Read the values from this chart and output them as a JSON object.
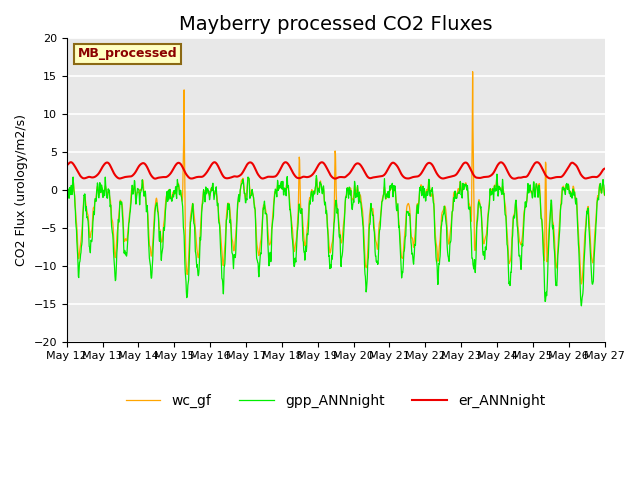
{
  "title": "Mayberry processed CO2 Fluxes",
  "ylabel": "CO2 Flux (urology/m2/s)",
  "xlabel": "",
  "ylim": [
    -20,
    20
  ],
  "background_color": "#ffffff",
  "plot_bg_color": "#e8e8e8",
  "grid_color": "#ffffff",
  "legend_label": "MB_processed",
  "legend_text_color": "#8b0000",
  "legend_box_color": "#ffffc0",
  "series_labels": [
    "gpp_ANNnight",
    "er_ANNnight",
    "wc_gf"
  ],
  "series_colors": [
    "#00ee00",
    "#ee0000",
    "#ffa500"
  ],
  "xtick_labels": [
    "May 12",
    "May 13",
    "May 14",
    "May 15",
    "May 16",
    "May 17",
    "May 18",
    "May 19",
    "May 20",
    "May 21",
    "May 22",
    "May 23",
    "May 24",
    "May 25",
    "May 26",
    "May 27"
  ],
  "title_fontsize": 14,
  "tick_fontsize": 8,
  "legend_fontsize": 10
}
